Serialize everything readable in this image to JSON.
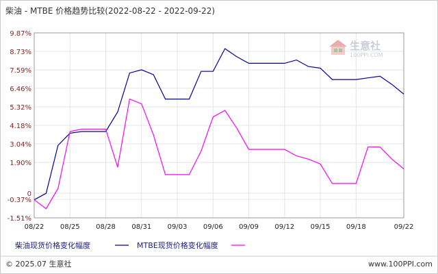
{
  "chart_data": {
    "type": "line",
    "title": "柴油 - MTBE 价格趋势比较(2022-08-22 - 2022-09-22)",
    "x": [
      "08/22",
      "08/23",
      "08/24",
      "08/25",
      "08/26",
      "08/27",
      "08/28",
      "08/29",
      "08/30",
      "08/31",
      "09/01",
      "09/02",
      "09/03",
      "09/04",
      "09/05",
      "09/06",
      "09/07",
      "09/08",
      "09/09",
      "09/10",
      "09/11",
      "09/12",
      "09/13",
      "09/14",
      "09/15",
      "09/16",
      "09/17",
      "09/18",
      "09/19",
      "09/20",
      "09/21",
      "09/22"
    ],
    "x_tick_labels": [
      "08/22",
      "08/25",
      "08/28",
      "08/31",
      "09/03",
      "09/06",
      "09/09",
      "09/12",
      "09/15",
      "09/18",
      "09/22"
    ],
    "y_tick_labels": [
      "9.87%",
      "8.73%",
      "7.59%",
      "6.46%",
      "5.32%",
      "4.18%",
      "3.04%",
      "1.90%",
      "0",
      "-0.37%",
      "-1.51%"
    ],
    "y_tick_values": [
      9.87,
      8.73,
      7.59,
      6.46,
      5.32,
      4.18,
      3.04,
      1.9,
      0,
      -0.37,
      -1.51
    ],
    "ylim": [
      -1.51,
      9.87
    ],
    "grid": true,
    "legend_position": "bottom",
    "series": [
      {
        "name": "柴油现货价格变化幅度",
        "color": "#000099",
        "values": [
          -0.4,
          0.0,
          2.95,
          3.7,
          3.8,
          3.8,
          3.8,
          5.0,
          7.4,
          7.6,
          7.3,
          5.8,
          5.8,
          5.8,
          7.5,
          7.5,
          8.9,
          8.4,
          8.0,
          8.0,
          8.0,
          8.0,
          8.2,
          7.8,
          7.7,
          7.0,
          7.0,
          7.0,
          7.1,
          7.2,
          6.7,
          6.1
        ]
      },
      {
        "name": "MTBE现货价格变化幅度",
        "color": "#ff00ff",
        "values": [
          -0.4,
          -0.95,
          0.3,
          3.8,
          3.95,
          3.95,
          3.95,
          1.6,
          5.8,
          5.5,
          3.6,
          1.15,
          1.15,
          1.15,
          2.6,
          4.7,
          5.1,
          4.0,
          2.7,
          2.7,
          2.7,
          2.7,
          2.3,
          2.1,
          1.8,
          0.6,
          0.6,
          0.6,
          2.85,
          2.85,
          2.1,
          1.5
        ]
      }
    ]
  },
  "watermark": {
    "brand": "生意社",
    "url": "100PPI.COM"
  },
  "footer": {
    "copyright": "© 2025.07 生意社",
    "website": "www.100PPI.com"
  }
}
